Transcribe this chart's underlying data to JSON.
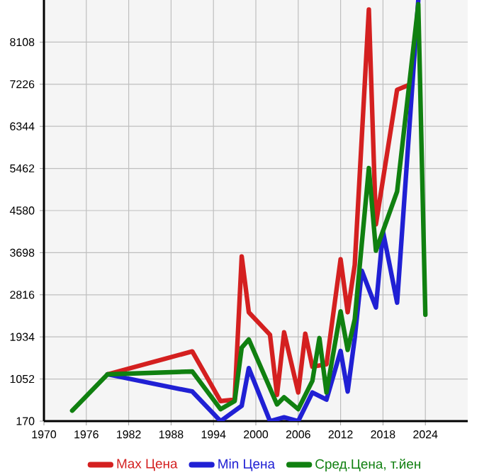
{
  "chart_data": {
    "type": "line",
    "xlim": [
      1970,
      2030
    ],
    "xticks": [
      1970,
      1976,
      1982,
      1988,
      1994,
      2000,
      2006,
      2012,
      2018,
      2024
    ],
    "ylim": [
      170,
      8990
    ],
    "yticks": [
      170,
      1052,
      1934,
      2816,
      3698,
      4580,
      5462,
      6344,
      7226,
      8108
    ],
    "grid": true,
    "legend": "bottom",
    "series": [
      {
        "name": "Max Цена",
        "color": "#d42020",
        "x": [
          1979,
          1991,
          1995,
          1997,
          1998,
          1999,
          2002,
          2003,
          2004,
          2006,
          2007,
          2008,
          2010,
          2012,
          2013,
          2014,
          2016,
          2017,
          2020,
          2022
        ],
        "values": [
          1150,
          1630,
          590,
          620,
          3620,
          2450,
          1980,
          720,
          2030,
          770,
          2000,
          1310,
          1360,
          3560,
          2450,
          3440,
          8790,
          4290,
          7110,
          7230
        ]
      },
      {
        "name": "Min Цена",
        "color": "#2020d4",
        "x": [
          1979,
          1991,
          1995,
          1998,
          1999,
          2002,
          2004,
          2006,
          2008,
          2010,
          2012,
          2013,
          2014,
          2015,
          2017,
          2018,
          2020,
          2023
        ],
        "values": [
          1150,
          790,
          170,
          490,
          1280,
          170,
          250,
          170,
          770,
          620,
          1640,
          790,
          1910,
          3320,
          2550,
          4140,
          2650,
          8990
        ]
      },
      {
        "name": "Сред.Цена, т.йен",
        "color": "#108010",
        "x": [
          1974,
          1979,
          1991,
          1995,
          1997,
          1998,
          1999,
          2003,
          2004,
          2006,
          2008,
          2009,
          2010,
          2012,
          2013,
          2014,
          2016,
          2017,
          2020,
          2023,
          2024
        ],
        "values": [
          390,
          1150,
          1210,
          420,
          590,
          1710,
          1880,
          520,
          670,
          420,
          1010,
          1910,
          770,
          2470,
          1660,
          2300,
          5470,
          3740,
          4980,
          8900,
          2400
        ]
      }
    ]
  }
}
